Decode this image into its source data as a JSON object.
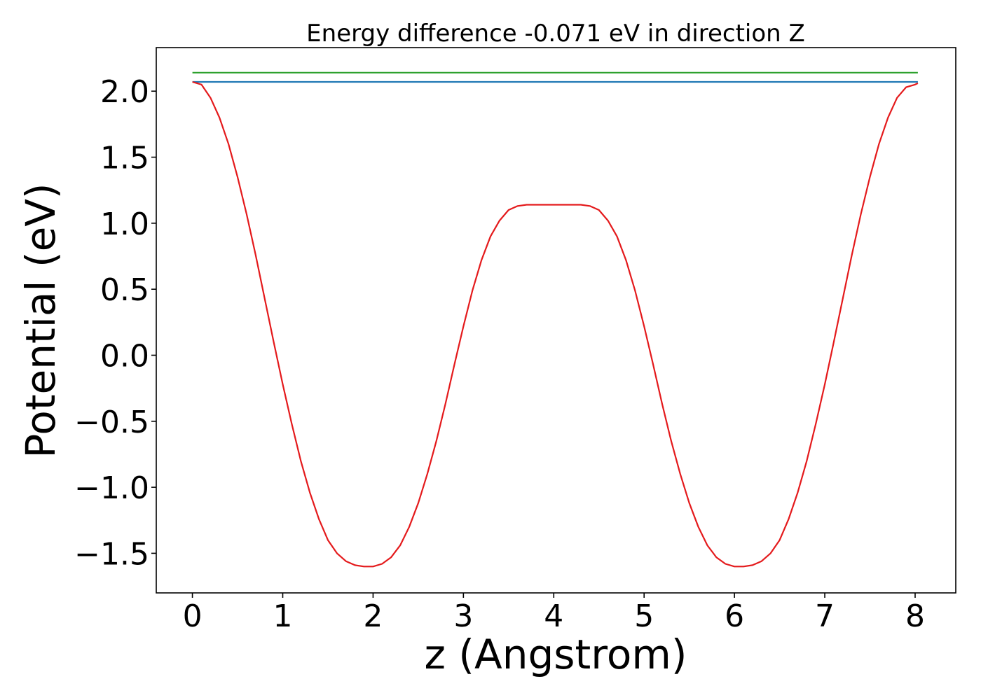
{
  "chart_data": {
    "type": "line",
    "title": "Energy difference -0.071 eV in direction Z",
    "xlabel": "z (Angstrom)",
    "ylabel": "Potential (eV)",
    "xlim": [
      -0.4,
      8.45
    ],
    "ylim": [
      -1.8,
      2.33
    ],
    "xticks": [
      0,
      1,
      2,
      3,
      4,
      5,
      6,
      7,
      8
    ],
    "xtick_labels": [
      "0",
      "1",
      "2",
      "3",
      "4",
      "5",
      "6",
      "7",
      "8"
    ],
    "yticks": [
      -1.5,
      -1.0,
      -0.5,
      0.0,
      0.5,
      1.0,
      1.5,
      2.0
    ],
    "ytick_labels": [
      "−1.5",
      "−1.0",
      "−0.5",
      "0.0",
      "0.5",
      "1.0",
      "1.5",
      "2.0"
    ],
    "grid": false,
    "legend": "none",
    "series": [
      {
        "color": "#2ca02c",
        "x": [
          0,
          8.03
        ],
        "y": [
          2.14,
          2.14
        ]
      },
      {
        "color": "#1f77b4",
        "x": [
          0,
          8.03
        ],
        "y": [
          2.07,
          2.07
        ]
      },
      {
        "color": "#e41a1c",
        "x": [
          0,
          0.1,
          0.2,
          0.3,
          0.4,
          0.5,
          0.6,
          0.7,
          0.8,
          0.9,
          1.0,
          1.1,
          1.2,
          1.3,
          1.4,
          1.5,
          1.6,
          1.7,
          1.8,
          1.9,
          2.0,
          2.1,
          2.2,
          2.3,
          2.4,
          2.5,
          2.6,
          2.7,
          2.8,
          2.9,
          3.0,
          3.1,
          3.2,
          3.3,
          3.4,
          3.5,
          3.6,
          3.7,
          3.8,
          3.9,
          4.0,
          4.1,
          4.2,
          4.3,
          4.4,
          4.5,
          4.6,
          4.7,
          4.8,
          4.9,
          5.0,
          5.1,
          5.2,
          5.3,
          5.4,
          5.5,
          5.6,
          5.7,
          5.8,
          5.9,
          6.0,
          6.1,
          6.2,
          6.3,
          6.4,
          6.5,
          6.6,
          6.7,
          6.8,
          6.9,
          7.0,
          7.1,
          7.2,
          7.3,
          7.4,
          7.5,
          7.6,
          7.7,
          7.8,
          7.9,
          8.0,
          8.03
        ],
        "y": [
          2.07,
          2.05,
          1.95,
          1.8,
          1.6,
          1.35,
          1.07,
          0.76,
          0.43,
          0.1,
          -0.22,
          -0.52,
          -0.8,
          -1.04,
          -1.24,
          -1.4,
          -1.5,
          -1.56,
          -1.59,
          -1.6,
          -1.6,
          -1.58,
          -1.53,
          -1.44,
          -1.3,
          -1.12,
          -0.9,
          -0.65,
          -0.37,
          -0.07,
          0.22,
          0.49,
          0.72,
          0.9,
          1.02,
          1.1,
          1.13,
          1.14,
          1.14,
          1.14,
          1.14,
          1.14,
          1.14,
          1.14,
          1.13,
          1.1,
          1.02,
          0.9,
          0.72,
          0.49,
          0.22,
          -0.07,
          -0.37,
          -0.65,
          -0.9,
          -1.12,
          -1.3,
          -1.44,
          -1.53,
          -1.58,
          -1.6,
          -1.6,
          -1.59,
          -1.56,
          -1.5,
          -1.4,
          -1.24,
          -1.04,
          -0.8,
          -0.52,
          -0.22,
          0.1,
          0.43,
          0.76,
          1.07,
          1.35,
          1.6,
          1.8,
          1.95,
          2.03,
          2.05,
          2.06
        ]
      }
    ]
  }
}
